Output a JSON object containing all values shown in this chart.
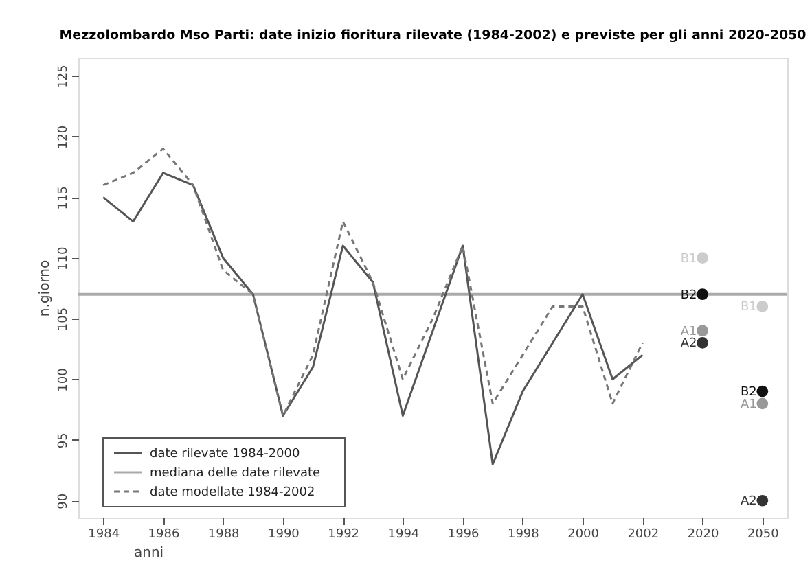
{
  "chart_data": {
    "type": "line",
    "title": "Mezzolombardo Mso Parti: date inizio fioritura rilevate (1984-2002) e previste per gli anni 2020-2050",
    "xlabel": "anni",
    "ylabel": "n.giorno",
    "categories": [
      "1984",
      null,
      "1986",
      null,
      "1988",
      null,
      "1990",
      null,
      "1992",
      null,
      "1994",
      null,
      "1996",
      null,
      "1998",
      null,
      "2000",
      null,
      "2002",
      null,
      "2020",
      null,
      "2050"
    ],
    "series": [
      {
        "name": "date rilevate 1984-2000",
        "color": "#555555",
        "line_style": "solid",
        "values": [
          115,
          113,
          117,
          116,
          110,
          107,
          97,
          101,
          111,
          108,
          97,
          104,
          111,
          93,
          99,
          103,
          107,
          100,
          102,
          null,
          null,
          null,
          null
        ]
      },
      {
        "name": "date modellate 1984-2002",
        "color": "#777777",
        "line_style": "dashed",
        "values": [
          116,
          117,
          119,
          116,
          109,
          107,
          97,
          102,
          113,
          108,
          100,
          105,
          111,
          98,
          102,
          106,
          106,
          98,
          103,
          null,
          null,
          null,
          null
        ]
      },
      {
        "name": "B1",
        "type": "scatter",
        "marker": "circle",
        "color": "#cccccc",
        "values": [
          null,
          null,
          null,
          null,
          null,
          null,
          null,
          null,
          null,
          null,
          null,
          null,
          null,
          null,
          null,
          null,
          null,
          null,
          null,
          null,
          110,
          null,
          106
        ]
      },
      {
        "name": "B2",
        "type": "scatter",
        "marker": "circle",
        "color": "#111111",
        "values": [
          null,
          null,
          null,
          null,
          null,
          null,
          null,
          null,
          null,
          null,
          null,
          null,
          null,
          null,
          null,
          null,
          null,
          null,
          null,
          null,
          107,
          null,
          99
        ]
      },
      {
        "name": "A1",
        "type": "scatter",
        "marker": "circle",
        "color": "#999999",
        "values": [
          null,
          null,
          null,
          null,
          null,
          null,
          null,
          null,
          null,
          null,
          null,
          null,
          null,
          null,
          null,
          null,
          null,
          null,
          null,
          null,
          104,
          null,
          98
        ]
      },
      {
        "name": "A2",
        "type": "scatter",
        "marker": "circle",
        "color": "#333333",
        "values": [
          null,
          null,
          null,
          null,
          null,
          null,
          null,
          null,
          null,
          null,
          null,
          null,
          null,
          null,
          null,
          null,
          null,
          null,
          null,
          null,
          103,
          null,
          90
        ]
      }
    ],
    "ref_lines": [
      {
        "axis": "y",
        "value": 107,
        "label": "mediana delle date rilevate",
        "color": "#aaaaaa",
        "line_style": "solid"
      }
    ],
    "ylim": [
      88.6,
      126.5
    ],
    "yticks": [
      90,
      95,
      100,
      105,
      110,
      115,
      120,
      125
    ],
    "grid": false,
    "legend": "bottom left"
  }
}
